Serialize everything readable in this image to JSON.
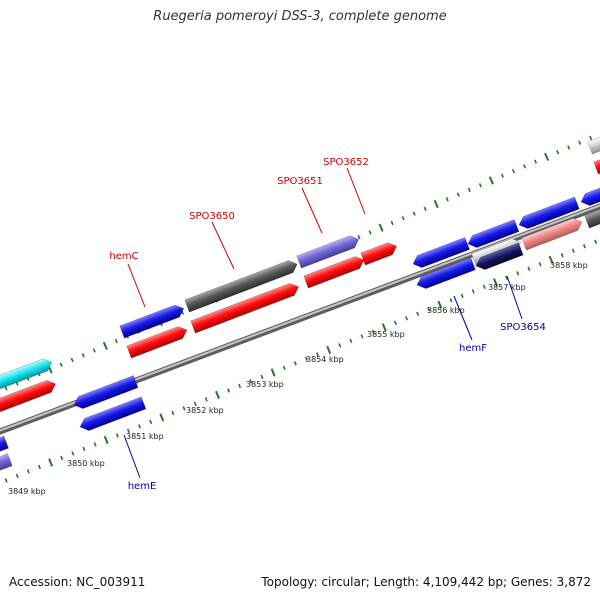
{
  "title": "Ruegeria pomeroyi DSS-3, complete genome",
  "footer": {
    "accession": "Accession: NC_003911",
    "stats": "Topology: circular; Length: 4,109,442 bp; Genes: 3,872"
  },
  "colors": {
    "backbone": "#8c8c8c",
    "tick": "#1f7a1f",
    "label_forward": "#cc0000",
    "label_reverse": "#0000b0",
    "kbp_label": "#222222"
  },
  "kbp_labels": [
    "3849 kbp",
    "3850 kbp",
    "3851 kbp",
    "3852 kbp",
    "3853 kbp",
    "3854 kbp",
    "3855 kbp",
    "3856 kbp",
    "3857 kbp",
    "3858 kbp"
  ],
  "gene_labels": {
    "forward": [
      "hemC",
      "SPO3650",
      "SPO3651",
      "SPO3652"
    ],
    "reverse": [
      "hemE",
      "hemF",
      "SPO3654"
    ]
  }
}
